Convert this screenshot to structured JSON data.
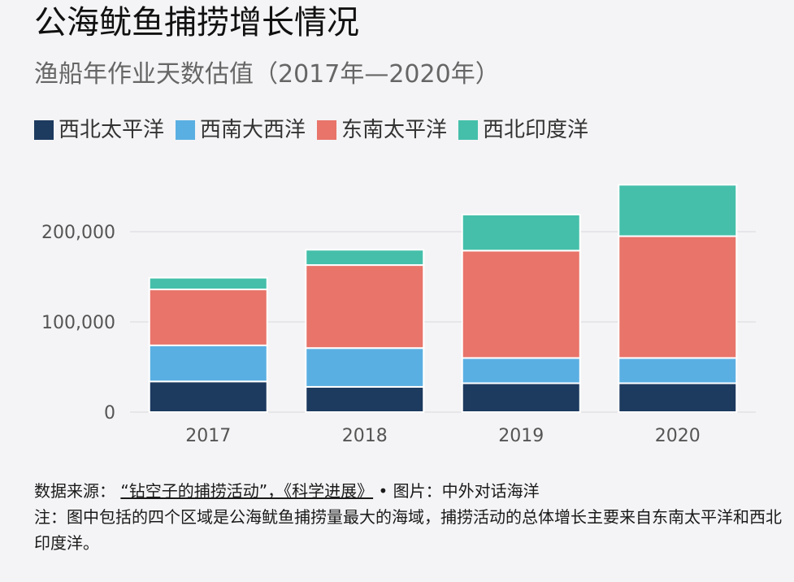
{
  "title": "公海鱿鱼捕捞增长情况",
  "subtitle": "渔船年作业天数估值（2017年—2020年）",
  "legend": [
    {
      "label": "西北太平洋",
      "color": "#1d3a5f"
    },
    {
      "label": "西南大西洋",
      "color": "#5aafe2"
    },
    {
      "label": "东南太平洋",
      "color": "#e8746a"
    },
    {
      "label": "西北印度洋",
      "color": "#45bfaa"
    }
  ],
  "chart_data": {
    "type": "bar",
    "stacked": true,
    "categories": [
      "2017",
      "2018",
      "2019",
      "2020"
    ],
    "series": [
      {
        "name": "西北太平洋",
        "color": "#1d3a5f",
        "values": [
          34000,
          28000,
          32000,
          32000
        ]
      },
      {
        "name": "西南大西洋",
        "color": "#5aafe2",
        "values": [
          40000,
          43000,
          28000,
          28000
        ]
      },
      {
        "name": "东南太平洋",
        "color": "#e8746a",
        "values": [
          62000,
          92000,
          119000,
          135000
        ]
      },
      {
        "name": "西北印度洋",
        "color": "#45bfaa",
        "values": [
          13000,
          17000,
          40000,
          57000
        ]
      }
    ],
    "yticks": [
      0,
      100000,
      200000
    ],
    "ytick_labels": [
      "0",
      "100,000",
      "200,000"
    ],
    "ylim": [
      0,
      252000
    ],
    "grid": true
  },
  "footer": {
    "source_prefix": "数据来源：",
    "source_link": "“钻空子的捕捞活动”，《科学进展》",
    "image_credit": " • 图片：中外对话海洋",
    "note": "注：图中包括的四个区域是公海鱿鱼捕捞量最大的海域，捕捞活动的总体增长主要来自东南太平洋和西北印度洋。"
  }
}
